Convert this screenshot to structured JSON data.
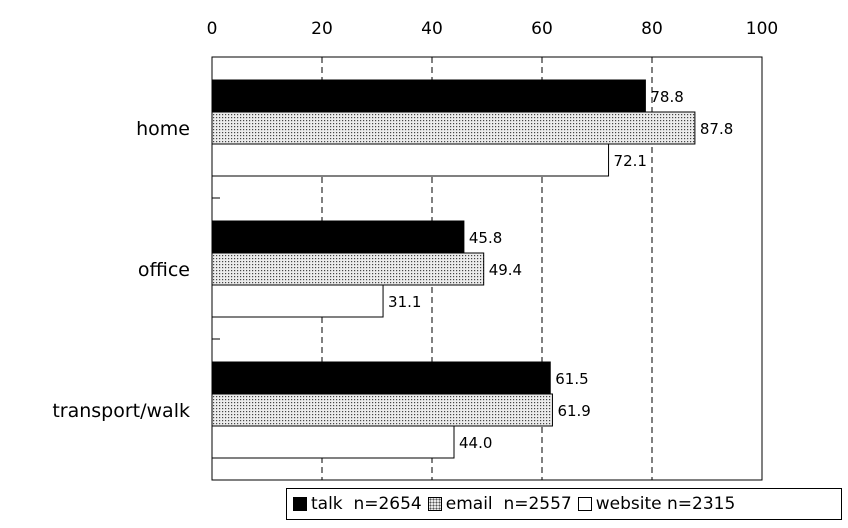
{
  "chart_data": {
    "type": "bar",
    "orientation": "horizontal",
    "categories": [
      "home",
      "office",
      "transport/walk"
    ],
    "series": [
      {
        "name": "talk",
        "n_label": "n=2654",
        "values": [
          78.8,
          45.8,
          61.5
        ],
        "fill": "#000000",
        "pattern": "solid"
      },
      {
        "name": "email",
        "n_label": "n=2557",
        "values": [
          87.8,
          49.4,
          61.9
        ],
        "fill": "#e0e0e0",
        "pattern": "dotted"
      },
      {
        "name": "website",
        "n_label": "n=2315",
        "values": [
          72.1,
          31.1,
          44.0
        ],
        "fill": "#ffffff",
        "pattern": "solid"
      }
    ],
    "value_labels": [
      [
        "78.8",
        "45.8",
        "61.5"
      ],
      [
        "87.8",
        "49.4",
        "61.9"
      ],
      [
        "72.1",
        "31.1",
        "44.0"
      ]
    ],
    "xlim": [
      0,
      100
    ],
    "xticks": [
      0,
      20,
      40,
      60,
      80,
      100
    ],
    "xtick_labels": [
      "0",
      "20",
      "40",
      "60",
      "80",
      "100"
    ],
    "xaxis_position": "top",
    "grid": "vertical dashed",
    "legend_position": "bottom-right",
    "title": "",
    "xlabel": "",
    "ylabel": ""
  }
}
